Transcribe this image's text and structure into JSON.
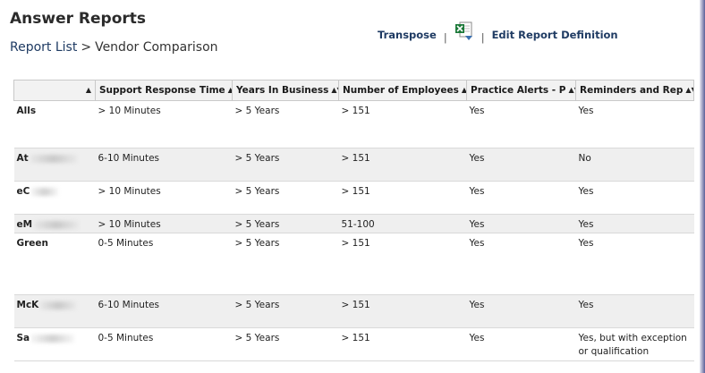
{
  "app": {
    "title": "Answer Reports"
  },
  "breadcrumb": {
    "root": "Report List",
    "separator": ">",
    "current": "Vendor Comparison"
  },
  "actions": {
    "transpose": "Transpose",
    "separator": "|",
    "export_icon": "excel-export-icon",
    "edit": "Edit Report Definition"
  },
  "colors": {
    "link": "#1f3b63",
    "header_bg": "#f2f2f2",
    "alt_row_bg": "#efefef",
    "excel_green": "#1d7a3a"
  },
  "table": {
    "columns": [
      {
        "label": "",
        "sort": "▲"
      },
      {
        "label": "Support Response Time",
        "sort": "▲"
      },
      {
        "label": "Years In Business",
        "sort": "▲▼"
      },
      {
        "label": "Number of Employees",
        "sort": "▲▼"
      },
      {
        "label": "Practice Alerts - P",
        "sort": "▲▼"
      },
      {
        "label": "Reminders and Rep",
        "sort": "▲▼"
      }
    ],
    "rows": [
      {
        "vendor": "Alls",
        "support": "> 10 Minutes",
        "years": "> 5 Years",
        "employees": "> 151",
        "alerts": "Yes",
        "reminders": "Yes"
      },
      {
        "vendor": "At",
        "support": "6-10 Minutes",
        "years": "> 5 Years",
        "employees": "> 151",
        "alerts": "Yes",
        "reminders": "No"
      },
      {
        "vendor": "eC",
        "support": "> 10 Minutes",
        "years": "> 5 Years",
        "employees": "> 151",
        "alerts": "Yes",
        "reminders": "Yes"
      },
      {
        "vendor": "eM",
        "support": "> 10 Minutes",
        "years": "> 5 Years",
        "employees": "51-100",
        "alerts": "Yes",
        "reminders": "Yes"
      },
      {
        "vendor": "Green",
        "support": "0-5 Minutes",
        "years": "> 5 Years",
        "employees": "> 151",
        "alerts": "Yes",
        "reminders": "Yes"
      },
      {
        "vendor": "McK",
        "support": "6-10 Minutes",
        "years": "> 5 Years",
        "employees": "> 151",
        "alerts": "Yes",
        "reminders": "Yes"
      },
      {
        "vendor": "Sa",
        "support": "0-5 Minutes",
        "years": "> 5 Years",
        "employees": "> 151",
        "alerts": "Yes",
        "reminders": "Yes, but with exception or qualification"
      }
    ]
  }
}
